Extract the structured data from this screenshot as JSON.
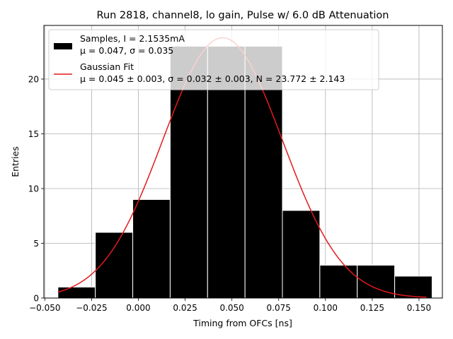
{
  "chart_data": {
    "type": "bar",
    "title": "Run 2818, channel8, lo gain, Pulse w/ 6.0 dB Attenuation",
    "xlabel": "Timing from OFCs [ns]",
    "ylabel": "Entries",
    "xlim": [
      -0.0505,
      0.1625
    ],
    "ylim": [
      0,
      24.9
    ],
    "grid": true,
    "x_ticks": [
      -0.05,
      -0.025,
      0.0,
      0.025,
      0.05,
      0.075,
      0.1,
      0.125,
      0.15
    ],
    "x_tick_labels": [
      "−0.050",
      "−0.025",
      "0.000",
      "0.025",
      "0.050",
      "0.075",
      "0.100",
      "0.125",
      "0.150"
    ],
    "y_ticks": [
      0,
      5,
      10,
      15,
      20
    ],
    "y_tick_labels": [
      "0",
      "5",
      "10",
      "15",
      "20"
    ],
    "histogram": {
      "name": "Samples",
      "color": "#000000",
      "bin_edges": [
        -0.043,
        -0.023,
        -0.003,
        0.017,
        0.037,
        0.057,
        0.077,
        0.097,
        0.117,
        0.137,
        0.157
      ],
      "counts": [
        1,
        6,
        9,
        23,
        23,
        23,
        8,
        3,
        3,
        2
      ]
    },
    "fit": {
      "name": "Gaussian Fit",
      "color": "#e41a1c",
      "mu": 0.045,
      "sigma": 0.032,
      "N": 23.772,
      "x_range": [
        -0.043,
        0.154
      ]
    },
    "legend": {
      "location": "upper-left",
      "entries": [
        {
          "line1": "Samples, I = 2.1535mA",
          "line2": "μ = 0.047, σ = 0.035"
        },
        {
          "line1": "Gaussian Fit",
          "line2": "μ = 0.045 ± 0.003, σ = 0.032 ± 0.003, N = 23.772 ± 2.143"
        }
      ]
    }
  }
}
